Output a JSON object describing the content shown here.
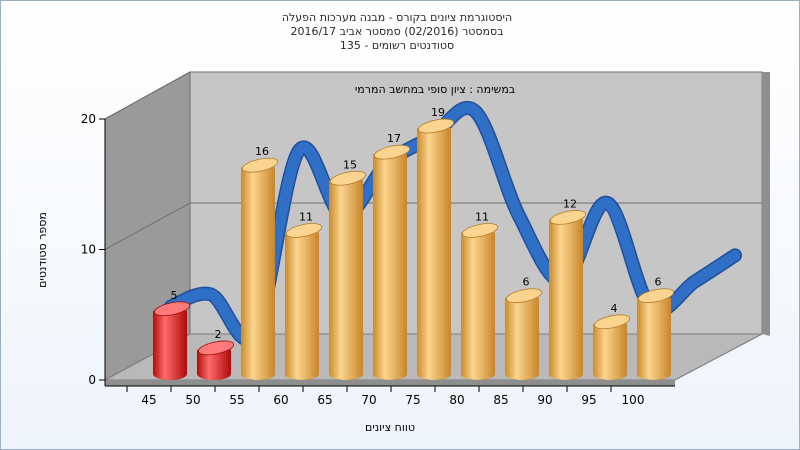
{
  "chart_data": {
    "type": "bar",
    "title": [
      "היסטוגרמת ציונים בקורס - מבנה מערכות הפעלה",
      "בסמסטר  (02/2016)  סמסטר אביב 2016/17",
      "135 - סטודנטים רשומים"
    ],
    "subtitle": "במשימה : ציון סופי במחשב המרמי",
    "xlabel": "טווח ציונים",
    "ylabel": "מספר סטודנטים",
    "categories": [
      "45",
      "50",
      "55",
      "60",
      "65",
      "70",
      "75",
      "80",
      "85",
      "90",
      "95",
      "100"
    ],
    "values": [
      5,
      2,
      16,
      11,
      15,
      17,
      19,
      11,
      6,
      12,
      4,
      6
    ],
    "highlight_below_index": 2,
    "ylim": [
      0,
      20
    ],
    "yticks": [
      0,
      10,
      20
    ],
    "grid": true,
    "trend_line": true,
    "colors": {
      "bar": "#e8a448",
      "bar_light": "#fbd58f",
      "bar_fail": "#dd1111",
      "bar_fail_light": "#ff7a7a",
      "trend": "#2f6fc6",
      "wall": "#c6c6c6",
      "side_wall": "#9a9a9a",
      "floor": "#b9b9b9"
    }
  }
}
